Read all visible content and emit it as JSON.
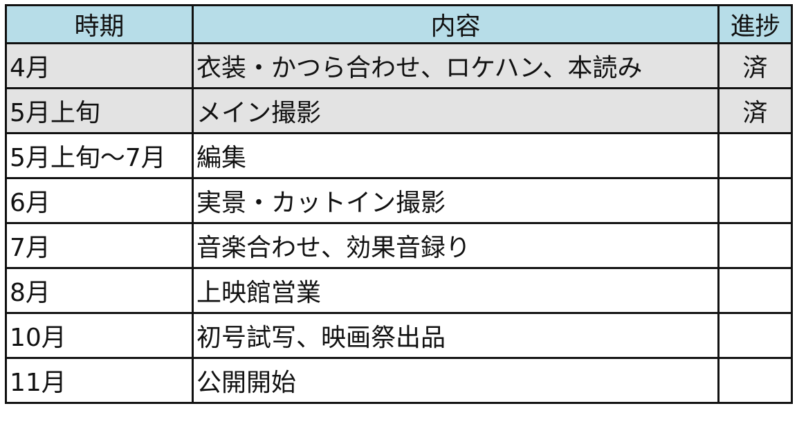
{
  "header": [
    "時期",
    "内容",
    "進捗"
  ],
  "rows": [
    {
      "period": "4月",
      "content": "衣装・かつら合わせ、ロケハン、本読み",
      "status": "済",
      "done": true
    },
    {
      "period": "5月上旬",
      "content": "メイン撮影",
      "status": "済",
      "done": true
    },
    {
      "period": "5月上旬～7月",
      "content": "編集",
      "status": "",
      "done": false
    },
    {
      "period": "6月",
      "content": "実景・カットイン撮影",
      "status": "",
      "done": false
    },
    {
      "period": "7月",
      "content": "音楽合わせ、効果音録り",
      "status": "",
      "done": false
    },
    {
      "period": "8月",
      "content": "上映館営業",
      "status": "",
      "done": false
    },
    {
      "period": "10月",
      "content": "初号試写、映画祭出品",
      "status": "",
      "done": false
    },
    {
      "period": "11月",
      "content": "公開開始",
      "status": "",
      "done": false
    }
  ],
  "colors": {
    "header_bg": "#b7dde8",
    "done_row_bg": "#e3e3e3"
  }
}
